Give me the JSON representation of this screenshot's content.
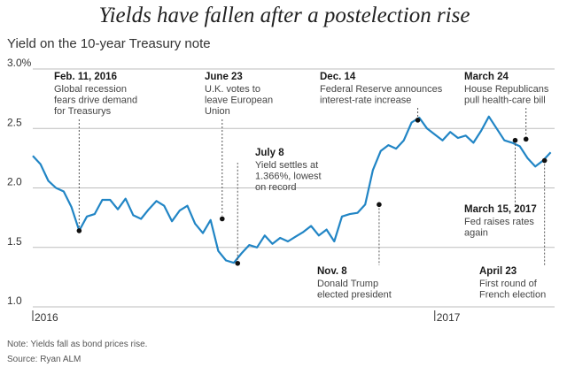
{
  "chart_data": {
    "type": "line",
    "title": "Yields have fallen after a postelection rise",
    "subtitle": "Yield on the 10-year Treasury note",
    "ylabel": "",
    "xlabel": "",
    "ylim": [
      1.0,
      3.0
    ],
    "ytick_labels": [
      "3.0%",
      "2.5",
      "2.0",
      "1.5",
      "1.0"
    ],
    "yticks": [
      3.0,
      2.5,
      2.0,
      1.5,
      1.0
    ],
    "xtick_labels": [
      "2016",
      "2017"
    ],
    "xticks": [
      0,
      52
    ],
    "x_unit": "weeks since Jan 1, 2016",
    "line_color": "#2185c5",
    "series": [
      {
        "name": "10-year Treasury yield",
        "x": [
          0,
          1,
          2,
          3,
          4,
          5,
          6,
          7,
          8,
          9,
          10,
          11,
          12,
          13,
          14,
          15,
          16,
          17,
          18,
          19,
          20,
          21,
          22,
          23,
          24,
          25,
          26,
          27,
          28,
          29,
          30,
          31,
          32,
          33,
          34,
          35,
          36,
          37,
          38,
          39,
          40,
          41,
          42,
          43,
          44,
          45,
          46,
          47,
          48,
          49,
          50,
          51,
          52,
          53,
          54,
          55,
          56,
          57,
          58,
          59,
          60,
          61,
          62,
          63,
          64,
          65,
          66,
          67
        ],
        "values": [
          2.27,
          2.2,
          2.06,
          2.0,
          1.97,
          1.84,
          1.64,
          1.76,
          1.78,
          1.9,
          1.9,
          1.82,
          1.91,
          1.77,
          1.74,
          1.82,
          1.89,
          1.85,
          1.72,
          1.81,
          1.85,
          1.7,
          1.62,
          1.73,
          1.47,
          1.39,
          1.37,
          1.45,
          1.52,
          1.5,
          1.6,
          1.53,
          1.58,
          1.55,
          1.59,
          1.63,
          1.68,
          1.6,
          1.65,
          1.55,
          1.76,
          1.78,
          1.79,
          1.86,
          2.15,
          2.31,
          2.36,
          2.33,
          2.4,
          2.55,
          2.59,
          2.5,
          2.45,
          2.4,
          2.47,
          2.42,
          2.44,
          2.38,
          2.48,
          2.6,
          2.5,
          2.4,
          2.38,
          2.35,
          2.25,
          2.18,
          2.23,
          2.3
        ]
      }
    ],
    "annotations": [
      {
        "date": "Feb. 11, 2016",
        "text": [
          "Global recession",
          "fears drive demand",
          "for Treasurys"
        ],
        "x": 6,
        "y": 1.64
      },
      {
        "date": "June 23",
        "text": [
          "U.K. votes to",
          "leave European",
          "Union"
        ],
        "x": 24.5,
        "y": 1.74
      },
      {
        "date": "July 8",
        "text": [
          "Yield settles at",
          "1.366%, lowest",
          "on record"
        ],
        "x": 26.5,
        "y": 1.366
      },
      {
        "date": "Nov. 8",
        "text": [
          "Donald Trump",
          "elected president"
        ],
        "x": 44.8,
        "y": 1.86
      },
      {
        "date": "Dec. 14",
        "text": [
          "Federal Reserve announces",
          "interest-rate increase"
        ],
        "x": 49.8,
        "y": 2.57
      },
      {
        "date": "March 15, 2017",
        "text": [
          "Fed raises rates",
          "again"
        ],
        "x": 62.4,
        "y": 2.4
      },
      {
        "date": "March 24",
        "text": [
          "House Republicans",
          "pull health-care bill"
        ],
        "x": 63.8,
        "y": 2.41
      },
      {
        "date": "April 23",
        "text": [
          "First round of",
          "French election"
        ],
        "x": 66.2,
        "y": 2.23
      }
    ],
    "footnote": "Note: Yields fall as bond prices rise.",
    "source": "Source: Ryan ALM"
  }
}
